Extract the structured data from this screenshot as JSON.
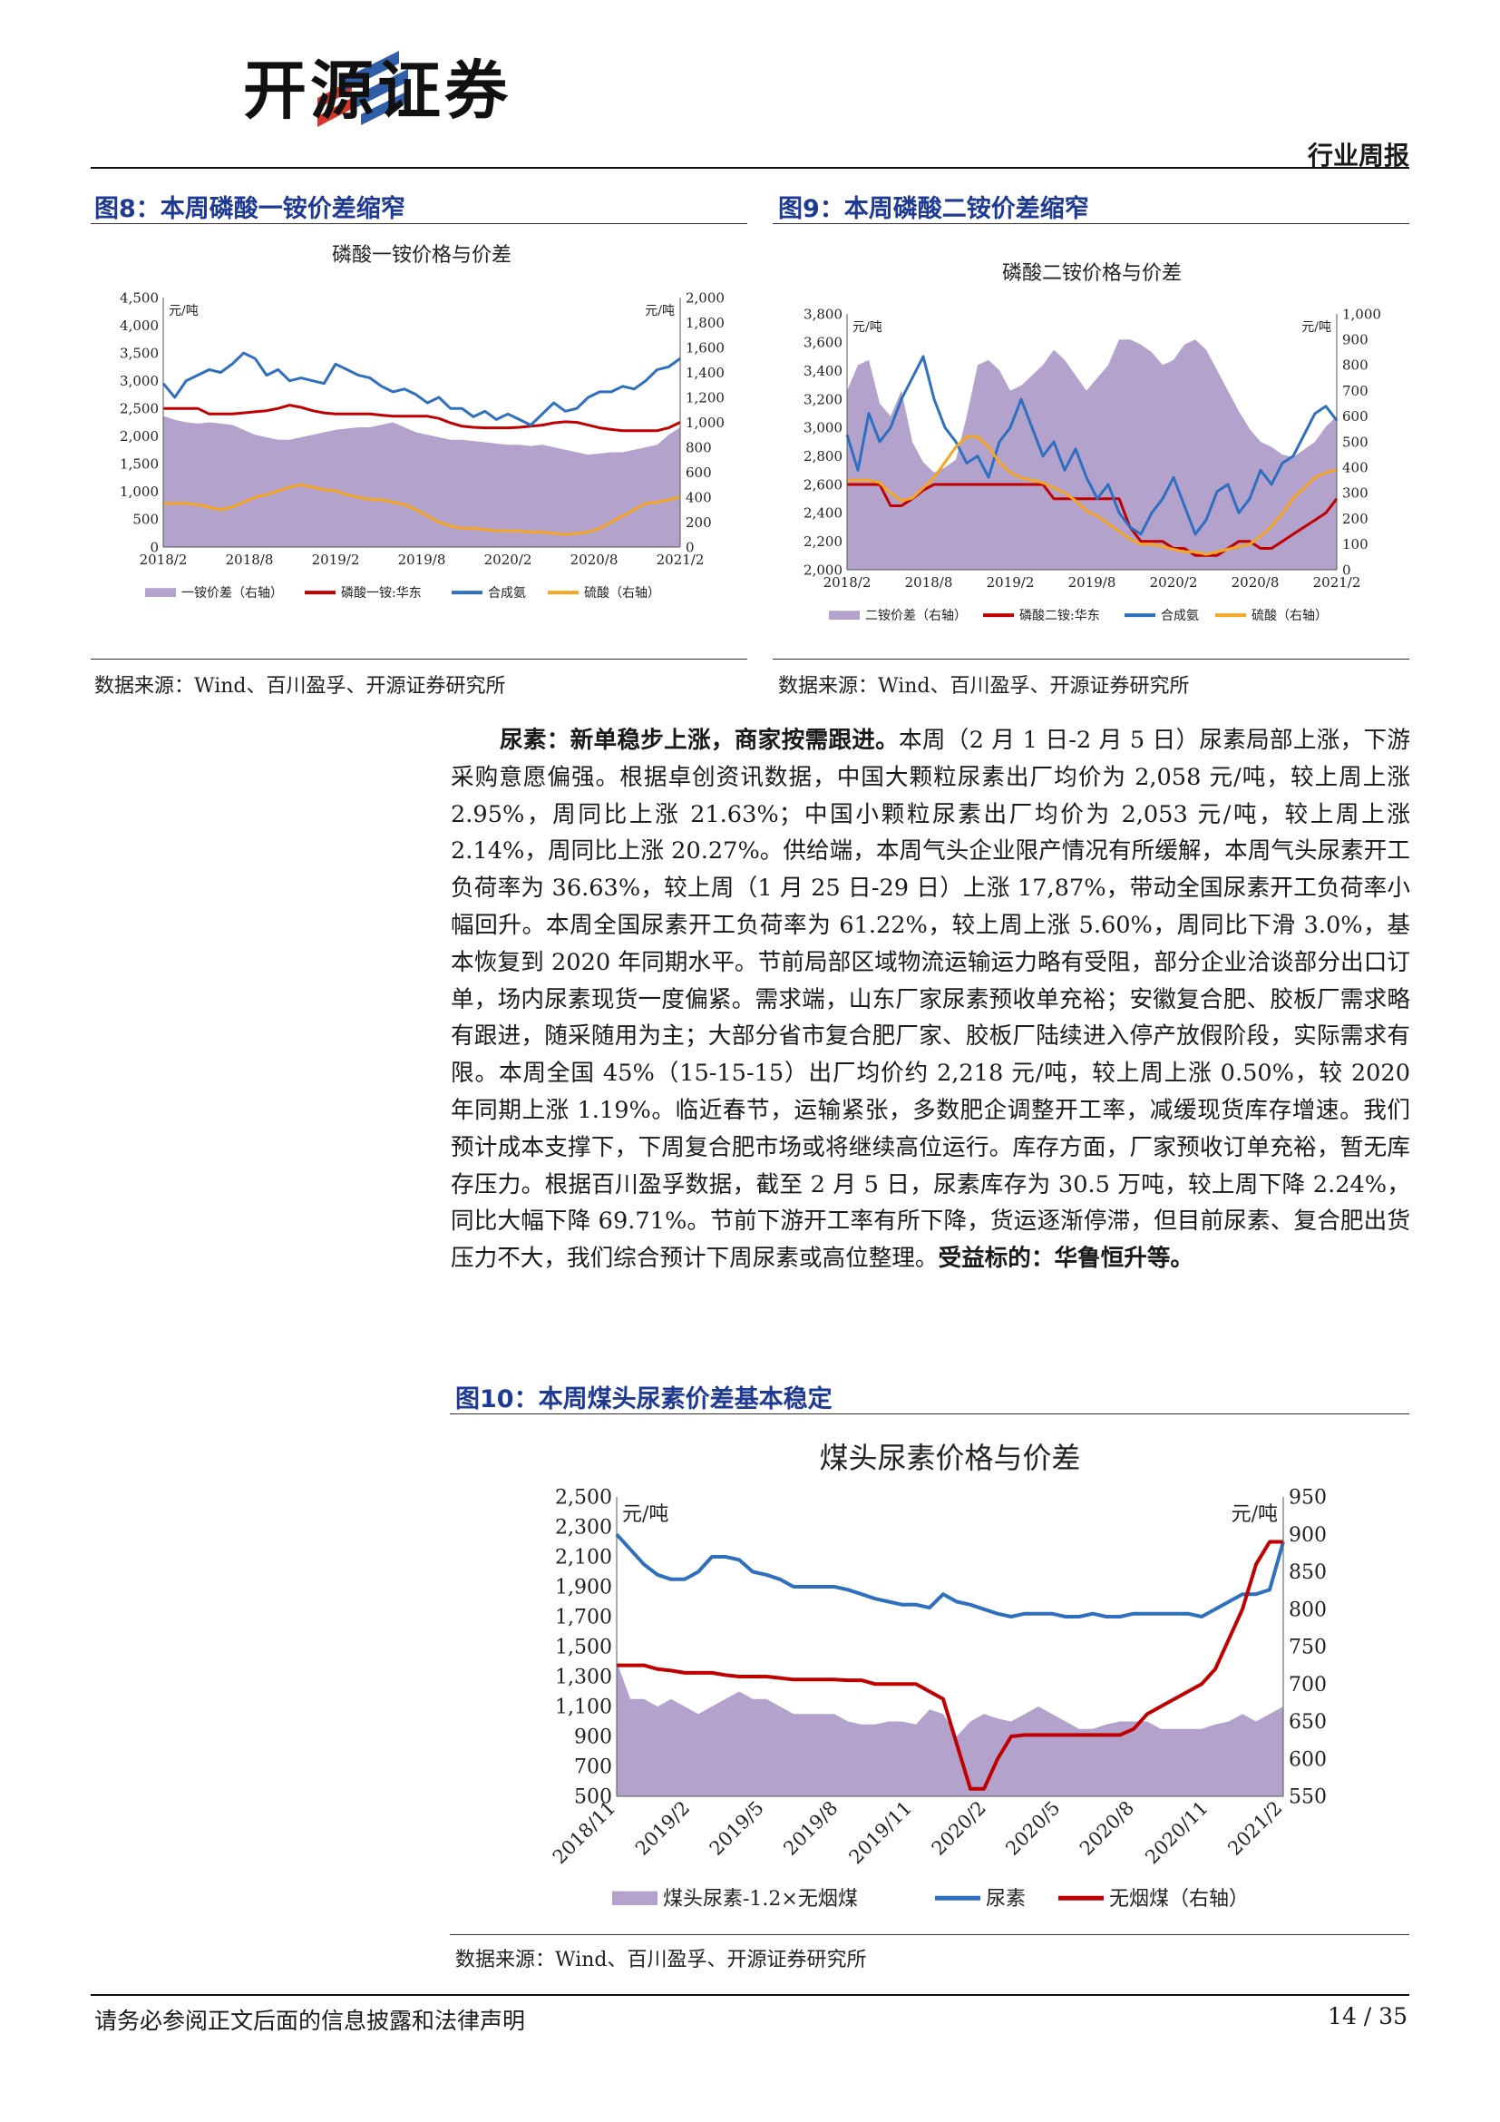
{
  "header": {
    "brand": "开源证券",
    "report_type": "行业周报"
  },
  "fig8": {
    "title": "图8：本周磷酸一铵价差缩窄",
    "source": "数据来源：Wind、百川盈孚、开源证券研究所",
    "chart_data": {
      "type": "area",
      "title": "磷酸一铵价格与价差",
      "unit_left": "元/吨",
      "unit_right": "元/吨",
      "left_axis": [
        0,
        4500
      ],
      "left_ticks": [
        "0",
        "500",
        "1,000",
        "1,500",
        "2,000",
        "2,500",
        "3,000",
        "3,500",
        "4,000",
        "4,500"
      ],
      "right_axis": [
        0,
        2000
      ],
      "right_ticks": [
        "0",
        "200",
        "400",
        "600",
        "800",
        "1,000",
        "1,200",
        "1,400",
        "1,600",
        "1,800",
        "2,000"
      ],
      "x_ticks": [
        "2018/2",
        "2018/8",
        "2019/2",
        "2019/8",
        "2020/2",
        "2020/8",
        "2021/2"
      ],
      "legend": [
        "一铵价差（右轴）",
        "磷酸一铵:华东",
        "合成氨",
        "硫酸（右轴）"
      ],
      "colors": {
        "spread": "#b3a2cc",
        "map": "#c00000",
        "ammonia": "#2f6fbf",
        "acid": "#f5a623"
      },
      "series": [
        {
          "name": "一铵价差（右轴）",
          "axis": "right",
          "values": [
            1050,
            1020,
            1000,
            990,
            1000,
            990,
            980,
            940,
            900,
            880,
            860,
            860,
            880,
            900,
            920,
            940,
            950,
            960,
            960,
            980,
            1000,
            960,
            920,
            900,
            880,
            860,
            860,
            850,
            840,
            830,
            820,
            820,
            810,
            820,
            800,
            780,
            760,
            740,
            750,
            760,
            760,
            780,
            800,
            820,
            900,
            960
          ]
        },
        {
          "name": "磷酸一铵:华东",
          "axis": "left",
          "values": [
            2500,
            2500,
            2500,
            2500,
            2400,
            2400,
            2400,
            2420,
            2440,
            2460,
            2500,
            2560,
            2520,
            2460,
            2420,
            2400,
            2400,
            2400,
            2400,
            2380,
            2360,
            2360,
            2360,
            2360,
            2320,
            2240,
            2180,
            2160,
            2150,
            2150,
            2150,
            2160,
            2180,
            2200,
            2240,
            2260,
            2250,
            2200,
            2150,
            2120,
            2100,
            2100,
            2100,
            2100,
            2150,
            2250
          ]
        },
        {
          "name": "合成氨",
          "axis": "left",
          "values": [
            2950,
            2700,
            3000,
            3100,
            3200,
            3150,
            3300,
            3500,
            3400,
            3100,
            3200,
            3000,
            3050,
            3000,
            2950,
            3300,
            3200,
            3100,
            3050,
            2900,
            2800,
            2850,
            2750,
            2600,
            2700,
            2500,
            2500,
            2350,
            2450,
            2300,
            2400,
            2300,
            2200,
            2400,
            2600,
            2450,
            2500,
            2700,
            2800,
            2800,
            2900,
            2850,
            3000,
            3200,
            3250,
            3400
          ]
        },
        {
          "name": "硫酸（右轴）",
          "axis": "right",
          "values": [
            350,
            350,
            350,
            340,
            320,
            300,
            320,
            360,
            400,
            420,
            450,
            480,
            500,
            480,
            460,
            450,
            420,
            400,
            380,
            380,
            360,
            340,
            300,
            250,
            200,
            170,
            150,
            150,
            140,
            130,
            130,
            130,
            120,
            120,
            110,
            100,
            110,
            120,
            150,
            200,
            250,
            300,
            350,
            360,
            380,
            400
          ]
        }
      ]
    }
  },
  "fig9": {
    "title": "图9：本周磷酸二铵价差缩窄",
    "source": "数据来源：Wind、百川盈孚、开源证券研究所",
    "chart_data": {
      "type": "area",
      "title": "磷酸二铵价格与价差",
      "unit_left": "元/吨",
      "unit_right": "元/吨",
      "left_axis": [
        2000,
        3800
      ],
      "left_ticks": [
        "2,000",
        "2,200",
        "2,400",
        "2,600",
        "2,800",
        "3,000",
        "3,200",
        "3,400",
        "3,600",
        "3,800"
      ],
      "right_axis": [
        0,
        1000
      ],
      "right_ticks": [
        "0",
        "100",
        "200",
        "300",
        "400",
        "500",
        "600",
        "700",
        "800",
        "900",
        "1,000"
      ],
      "x_ticks": [
        "2018/2",
        "2018/8",
        "2019/2",
        "2019/8",
        "2020/2",
        "2020/8",
        "2021/2"
      ],
      "legend": [
        "二铵价差（右轴）",
        "磷酸二铵:华东",
        "合成氨",
        "硫酸（右轴）"
      ],
      "colors": {
        "spread": "#b3a2cc",
        "map": "#c00000",
        "ammonia": "#2f6fbf",
        "acid": "#f5a623"
      },
      "series": [
        {
          "name": "二铵价差（右轴）",
          "axis": "right",
          "values": [
            700,
            800,
            820,
            650,
            600,
            700,
            500,
            420,
            380,
            400,
            430,
            600,
            800,
            820,
            780,
            700,
            720,
            760,
            800,
            860,
            820,
            760,
            700,
            750,
            800,
            900,
            900,
            880,
            850,
            800,
            820,
            880,
            900,
            860,
            780,
            700,
            620,
            550,
            500,
            480,
            450,
            440,
            470,
            500,
            560,
            600
          ]
        },
        {
          "name": "磷酸二铵:华东",
          "axis": "left",
          "values": [
            2600,
            2600,
            2600,
            2600,
            2450,
            2450,
            2500,
            2560,
            2600,
            2600,
            2600,
            2600,
            2600,
            2600,
            2600,
            2600,
            2600,
            2600,
            2600,
            2500,
            2500,
            2500,
            2500,
            2500,
            2500,
            2500,
            2300,
            2200,
            2200,
            2200,
            2150,
            2150,
            2100,
            2100,
            2100,
            2150,
            2200,
            2200,
            2150,
            2150,
            2200,
            2250,
            2300,
            2350,
            2400,
            2500
          ]
        },
        {
          "name": "合成氨",
          "axis": "left",
          "values": [
            2950,
            2700,
            3100,
            2900,
            3000,
            3200,
            3350,
            3500,
            3200,
            3000,
            2900,
            2750,
            2800,
            2650,
            2900,
            3000,
            3200,
            3000,
            2800,
            2900,
            2700,
            2850,
            2650,
            2500,
            2600,
            2400,
            2300,
            2250,
            2400,
            2500,
            2650,
            2450,
            2250,
            2350,
            2550,
            2600,
            2400,
            2500,
            2700,
            2600,
            2750,
            2800,
            2950,
            3100,
            3150,
            3050
          ]
        },
        {
          "name": "硫酸（右轴）",
          "axis": "right",
          "values": [
            350,
            350,
            350,
            340,
            300,
            270,
            280,
            320,
            360,
            420,
            480,
            520,
            520,
            480,
            420,
            380,
            360,
            350,
            340,
            320,
            300,
            270,
            230,
            210,
            180,
            150,
            120,
            100,
            100,
            90,
            80,
            70,
            70,
            60,
            70,
            80,
            90,
            100,
            130,
            170,
            220,
            280,
            320,
            360,
            380,
            390
          ]
        }
      ]
    }
  },
  "body": {
    "lead": "尿素：新单稳步上涨，商家按需跟进。",
    "text": "本周（2 月 1 日-2 月 5 日）尿素局部上涨，下游采购意愿偏强。根据卓创资讯数据，中国大颗粒尿素出厂均价为 2,058 元/吨，较上周上涨 2.95%，周同比上涨 21.63%；中国小颗粒尿素出厂均价为 2,053 元/吨，较上周上涨 2.14%，周同比上涨 20.27%。供给端，本周气头企业限产情况有所缓解，本周气头尿素开工负荷率为 36.63%，较上周（1 月 25 日-29 日）上涨 17,87%，带动全国尿素开工负荷率小幅回升。本周全国尿素开工负荷率为 61.22%，较上周上涨 5.60%，周同比下滑 3.0%，基本恢复到 2020 年同期水平。节前局部区域物流运输运力略有受阻，部分企业洽谈部分出口订单，场内尿素现货一度偏紧。需求端，山东厂家尿素预收单充裕；安徽复合肥、胶板厂需求略有跟进，随采随用为主；大部分省市复合肥厂家、胶板厂陆续进入停产放假阶段，实际需求有限。本周全国 45%（15-15-15）出厂均价约 2,218 元/吨，较上周上涨 0.50%，较 2020 年同期上涨 1.19%。临近春节，运输紧张，多数肥企调整开工率，减缓现货库存增速。我们预计成本支撑下，下周复合肥市场或将继续高位运行。库存方面，厂家预收订单充裕，暂无库存压力。根据百川盈孚数据，截至 2 月 5 日，尿素库存为 30.5 万吨，较上周下降 2.24%，同比大幅下降 69.71%。节前下游开工率有所下降，货运逐渐停滞，但目前尿素、复合肥出货压力不大，我们综合预计下周尿素或高位整理。",
    "tail": "受益标的：华鲁恒升等。"
  },
  "fig10": {
    "title": "图10：本周煤头尿素价差基本稳定",
    "source": "数据来源：Wind、百川盈孚、开源证券研究所",
    "chart_data": {
      "type": "area",
      "title": "煤头尿素价格与价差",
      "unit_left": "元/吨",
      "unit_right": "元/吨",
      "left_axis": [
        500,
        2500
      ],
      "left_ticks": [
        "500",
        "700",
        "900",
        "1,100",
        "1,300",
        "1,500",
        "1,700",
        "1,900",
        "2,100",
        "2,300",
        "2,500"
      ],
      "right_axis": [
        550,
        950
      ],
      "right_ticks": [
        "550",
        "600",
        "650",
        "700",
        "750",
        "800",
        "850",
        "900",
        "950"
      ],
      "x_ticks": [
        "2018/11",
        "2019/2",
        "2019/5",
        "2019/8",
        "2019/11",
        "2020/2",
        "2020/5",
        "2020/8",
        "2020/11",
        "2021/2"
      ],
      "legend": [
        "煤头尿素-1.2×无烟煤",
        "尿素",
        "无烟煤（右轴）"
      ],
      "colors": {
        "spread": "#b3a2cc",
        "urea": "#2f6fbf",
        "coal": "#c00000"
      },
      "series": [
        {
          "name": "煤头尿素-1.2×无烟煤",
          "axis": "left",
          "values": [
            1400,
            1150,
            1150,
            1100,
            1150,
            1100,
            1050,
            1100,
            1150,
            1200,
            1150,
            1150,
            1100,
            1050,
            1050,
            1050,
            1050,
            1000,
            980,
            980,
            1000,
            1000,
            980,
            1080,
            1050,
            900,
            1000,
            1050,
            1020,
            1000,
            1050,
            1100,
            1050,
            1000,
            950,
            950,
            980,
            1000,
            1000,
            1000,
            950,
            950,
            950,
            950,
            980,
            1000,
            1050,
            1000,
            1050,
            1100
          ]
        },
        {
          "name": "尿素",
          "axis": "left",
          "values": [
            2250,
            2150,
            2050,
            1980,
            1950,
            1950,
            2000,
            2100,
            2100,
            2080,
            2000,
            1980,
            1950,
            1900,
            1900,
            1900,
            1900,
            1880,
            1850,
            1820,
            1800,
            1780,
            1780,
            1760,
            1850,
            1800,
            1780,
            1750,
            1720,
            1700,
            1720,
            1720,
            1720,
            1700,
            1700,
            1720,
            1700,
            1700,
            1720,
            1720,
            1720,
            1720,
            1720,
            1700,
            1750,
            1800,
            1850,
            1850,
            1880,
            2200
          ]
        },
        {
          "name": "无烟煤（右轴）",
          "axis": "right",
          "values": [
            725,
            725,
            725,
            720,
            718,
            715,
            715,
            715,
            712,
            710,
            710,
            710,
            708,
            706,
            706,
            706,
            706,
            705,
            705,
            700,
            700,
            700,
            700,
            690,
            680,
            620,
            560,
            560,
            600,
            630,
            632,
            632,
            632,
            632,
            632,
            632,
            632,
            632,
            640,
            660,
            670,
            680,
            690,
            700,
            720,
            760,
            800,
            860,
            890,
            890
          ]
        }
      ]
    }
  },
  "footer": {
    "disclaimer": "请务必参阅正文后面的信息披露和法律声明",
    "page": "14 / 35"
  }
}
